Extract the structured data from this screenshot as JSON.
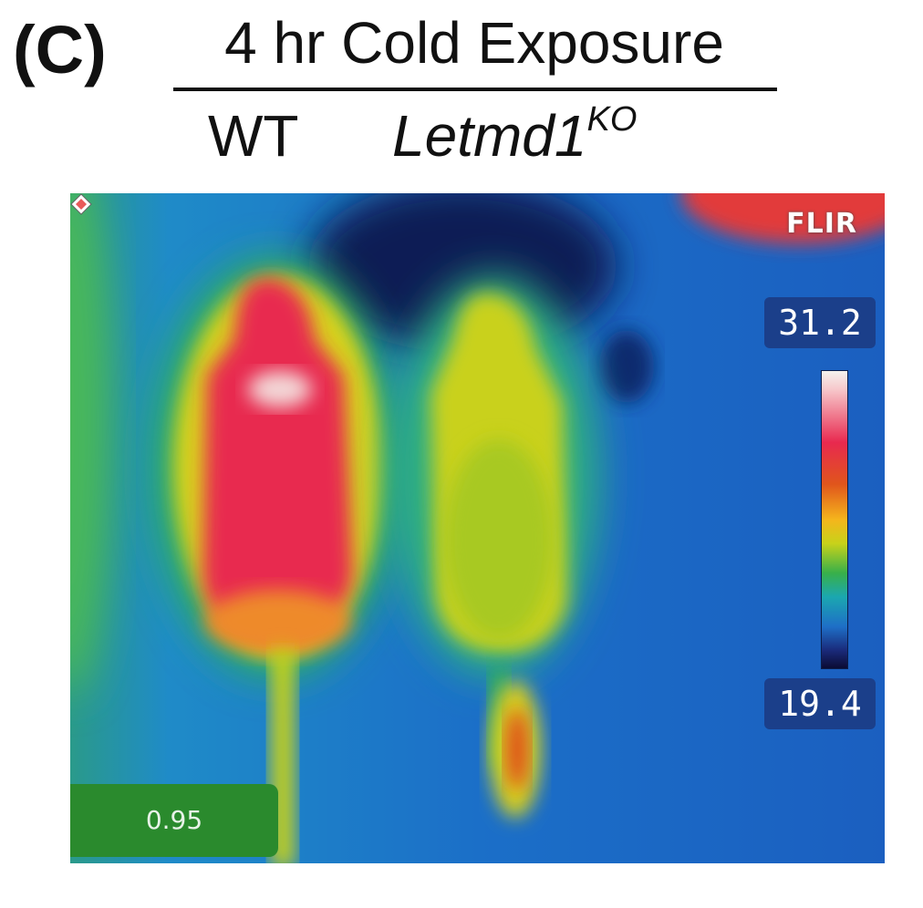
{
  "figure": {
    "panel_label": "(C)",
    "title": "4 hr Cold Exposure",
    "groups": {
      "wt": "WT",
      "ko_base": "Letmd1",
      "ko_sup": "KO"
    }
  },
  "thermal_image": {
    "brand": "FLIR",
    "scale_max": "31.2",
    "scale_min": "19.4",
    "emissivity": "0.95",
    "colors": {
      "background": "#1d72c9",
      "hot": "#e8294f",
      "warm": "#d8d21f",
      "cool": "#2fb05a",
      "cold": "#0b1d4a"
    }
  }
}
